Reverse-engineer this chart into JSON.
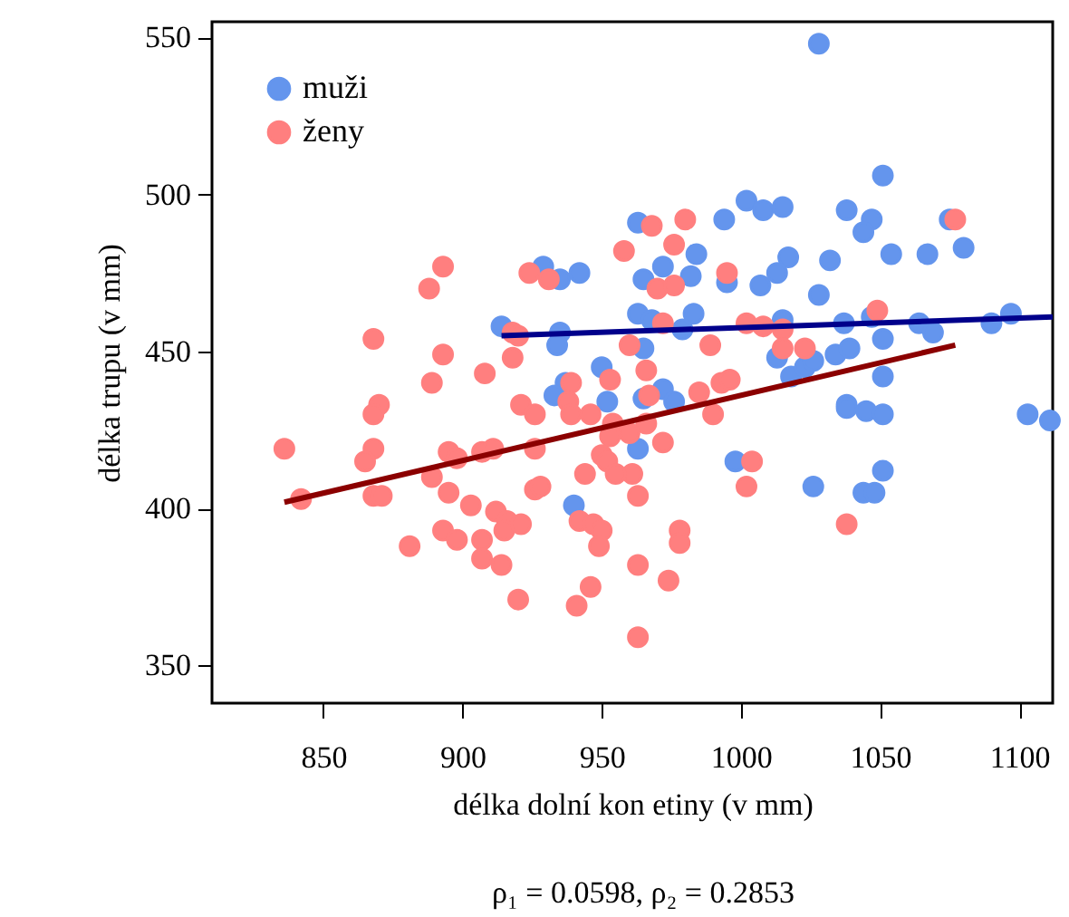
{
  "chart_data": {
    "type": "scatter",
    "xlabel": "délka dolní kon etiny (v mm)",
    "ylabel": "délka trupu (v mm)",
    "annotations": [
      "ρ₁ = 0.0598, ρ₂ = 0.2853"
    ],
    "xlim": [
      810,
      1112
    ],
    "ylim": [
      338,
      555
    ],
    "xticks": [
      850,
      900,
      950,
      1000,
      1050,
      1100
    ],
    "yticks": [
      350,
      400,
      450,
      500,
      550
    ],
    "legend": "top left",
    "marker": "circle",
    "series": [
      {
        "name": "muži",
        "color": "#6495ed",
        "x": [
          1028,
          1051,
          1002,
          1008,
          1015,
          1038,
          1047,
          1044,
          963,
          994,
          984,
          1017,
          1032,
          1054,
          1067,
          1080,
          972,
          965,
          982,
          995,
          1007,
          1013,
          1028,
          963,
          968,
          983,
          979,
          1015,
          1037,
          1047,
          1051,
          1064,
          1069,
          1090,
          1097,
          965,
          1034,
          1039,
          1075,
          1013,
          1018,
          1023,
          1026,
          1051,
          1038,
          1038,
          1045,
          1051,
          1103,
          1111,
          972,
          976,
          965,
          963,
          998,
          1026,
          1044,
          1048,
          1051,
          929,
          935,
          942,
          914,
          935,
          934,
          950,
          937,
          933,
          952,
          940
        ],
        "values": [
          548,
          506,
          498,
          495,
          496,
          495,
          492,
          488,
          491,
          492,
          481,
          480,
          479,
          481,
          481,
          483,
          477,
          473,
          474,
          472,
          471,
          475,
          468,
          462,
          460,
          462,
          457,
          460,
          459,
          461,
          454,
          459,
          456,
          459,
          462,
          451,
          449,
          451,
          492,
          448,
          442,
          445,
          447,
          442,
          433,
          432,
          431,
          430,
          430,
          428,
          438,
          434,
          435,
          419,
          415,
          407,
          405,
          405,
          412,
          477,
          473,
          475,
          458,
          456,
          452,
          445,
          440,
          436,
          434,
          401
        ]
      },
      {
        "name": "ženy",
        "color": "#ff7f7f",
        "x": [
          968,
          980,
          976,
          958,
          995,
          970,
          976,
          972,
          1002,
          1008,
          1015,
          960,
          989,
          1015,
          1023,
          1049,
          1077,
          966,
          967,
          985,
          993,
          996,
          990,
          966,
          960,
          972,
          961,
          963,
          1004,
          1002,
          1038,
          978,
          978,
          963,
          974,
          963,
          893,
          888,
          924,
          931,
          868,
          893,
          918,
          920,
          908,
          918,
          889,
          870,
          868,
          868,
          865,
          836,
          842,
          868,
          871,
          889,
          895,
          898,
          907,
          911,
          895,
          903,
          926,
          921,
          926,
          926,
          928,
          912,
          916,
          915,
          921,
          893,
          898,
          907,
          881,
          907,
          914,
          920,
          944,
          939,
          938,
          939,
          946,
          953,
          954,
          953,
          950,
          952,
          955,
          942,
          947,
          950,
          949,
          946,
          941
        ],
        "values": [
          490,
          492,
          484,
          482,
          475,
          470,
          471,
          459,
          459,
          458,
          457,
          452,
          452,
          451,
          451,
          463,
          492,
          444,
          436,
          437,
          440,
          441,
          430,
          427,
          424,
          421,
          411,
          404,
          415,
          407,
          395,
          393,
          389,
          382,
          377,
          359,
          477,
          470,
          475,
          473,
          454,
          449,
          456,
          455,
          443,
          448,
          440,
          433,
          430,
          419,
          415,
          419,
          403,
          404,
          404,
          410,
          418,
          416,
          418,
          419,
          405,
          401,
          419,
          433,
          430,
          406,
          407,
          399,
          396,
          393,
          395,
          393,
          390,
          390,
          388,
          384,
          382,
          371,
          411,
          440,
          434,
          430,
          430,
          441,
          427,
          423,
          417,
          415,
          411,
          396,
          395,
          393,
          388,
          375,
          369
        ]
      },
      {
        "type": "line",
        "marker": "none",
        "color": "#00008b",
        "x": [
          914,
          1112
        ],
        "values": [
          455,
          461
        ]
      },
      {
        "type": "line",
        "marker": "none",
        "color": "#8b0000",
        "x": [
          836,
          1077
        ],
        "values": [
          402,
          452
        ]
      }
    ]
  }
}
